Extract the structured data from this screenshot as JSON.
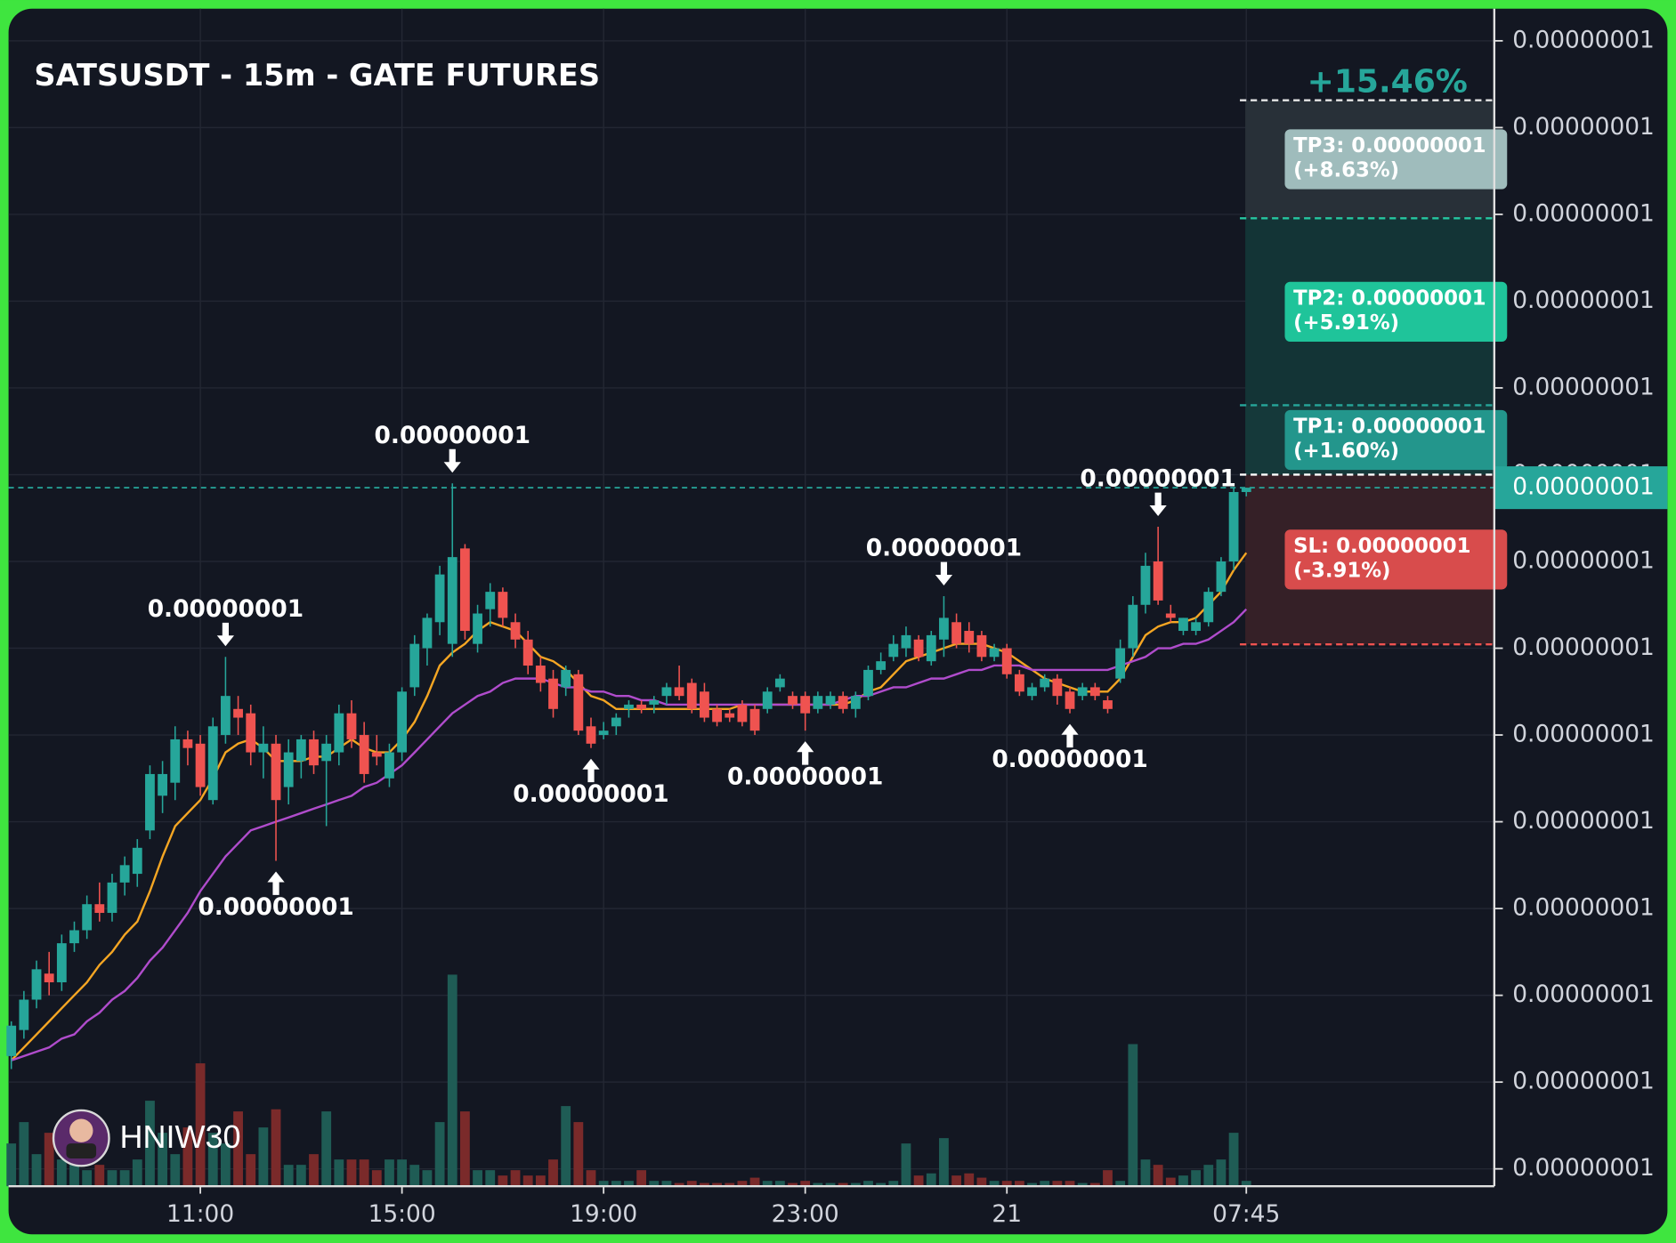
{
  "chart_data": {
    "type": "candlestick",
    "title": "SATSUSDT - 15m - GATE FUTURES",
    "watermark": "HNIW30",
    "categories": [
      null,
      null,
      null,
      null,
      null,
      null,
      null,
      null,
      null,
      null,
      null,
      null,
      null,
      null,
      null,
      "11:00",
      null,
      null,
      null,
      null,
      null,
      null,
      null,
      null,
      null,
      null,
      null,
      null,
      null,
      null,
      null,
      "15:00",
      null,
      null,
      null,
      null,
      null,
      null,
      null,
      null,
      null,
      null,
      null,
      null,
      null,
      null,
      null,
      "19:00",
      null,
      null,
      null,
      null,
      null,
      null,
      null,
      null,
      null,
      null,
      null,
      null,
      null,
      null,
      null,
      "23:00",
      null,
      null,
      null,
      null,
      null,
      null,
      null,
      null,
      null,
      null,
      null,
      null,
      null,
      null,
      null,
      "21",
      null,
      null,
      null,
      null,
      null,
      null,
      null,
      null,
      null,
      null,
      null,
      null,
      null,
      null,
      null,
      null,
      null,
      null,
      "07:45"
    ],
    "open": [
      8.66e-09,
      8.72e-09,
      8.79e-09,
      8.85e-09,
      8.83e-09,
      8.92e-09,
      8.95e-09,
      9.01e-09,
      8.99e-09,
      9.06e-09,
      9.08e-09,
      9.18e-09,
      9.26e-09,
      9.29e-09,
      9.39e-09,
      9.38e-09,
      9.25e-09,
      9.4e-09,
      9.46e-09,
      9.45e-09,
      9.36e-09,
      9.38e-09,
      9.28e-09,
      9.34e-09,
      9.39e-09,
      9.34e-09,
      9.36e-09,
      9.45e-09,
      9.4e-09,
      9.36e-09,
      9.3e-09,
      9.36e-09,
      9.51e-09,
      9.6e-09,
      9.66e-09,
      9.61e-09,
      9.83e-09,
      9.61e-09,
      9.69e-09,
      9.73e-09,
      9.66e-09,
      9.62e-09,
      9.56e-09,
      9.53e-09,
      9.51e-09,
      9.54e-09,
      9.42e-09,
      9.4e-09,
      9.42e-09,
      9.46e-09,
      9.47e-09,
      9.47e-09,
      9.49e-09,
      9.51e-09,
      9.52e-09,
      9.5e-09,
      9.46e-09,
      9.45e-09,
      9.47e-09,
      9.46e-09,
      9.46e-09,
      9.51e-09,
      9.49e-09,
      9.49e-09,
      9.46e-09,
      9.47e-09,
      9.49e-09,
      9.46e-09,
      9.49e-09,
      9.55e-09,
      9.58e-09,
      9.6e-09,
      9.62e-09,
      9.57e-09,
      9.62e-09,
      9.66e-09,
      9.64e-09,
      9.63e-09,
      9.58e-09,
      9.6e-09,
      9.54e-09,
      9.49e-09,
      9.51e-09,
      9.53e-09,
      9.5e-09,
      9.49e-09,
      9.51e-09,
      9.48e-09,
      9.53e-09,
      9.6e-09,
      9.7e-09,
      9.8e-09,
      9.68e-09,
      9.64e-09,
      9.64e-09,
      9.66e-09,
      9.73e-09,
      9.8e-09,
      9.96e-09
    ],
    "high": [
      8.74e-09,
      8.81e-09,
      8.88e-09,
      8.9e-09,
      8.94e-09,
      8.97e-09,
      9.03e-09,
      9.06e-09,
      9.08e-09,
      9.12e-09,
      9.16e-09,
      9.33e-09,
      9.34e-09,
      9.42e-09,
      9.41e-09,
      9.4e-09,
      9.44e-09,
      9.58e-09,
      9.49e-09,
      9.47e-09,
      9.42e-09,
      9.4e-09,
      9.39e-09,
      9.4e-09,
      9.41e-09,
      9.4e-09,
      9.47e-09,
      9.48e-09,
      9.43e-09,
      9.4e-09,
      9.38e-09,
      9.51e-09,
      9.63e-09,
      9.68e-09,
      9.79e-09,
      9.98e-09,
      9.84e-09,
      9.7e-09,
      9.75e-09,
      9.74e-09,
      9.68e-09,
      9.64e-09,
      9.58e-09,
      9.55e-09,
      9.56e-09,
      9.55e-09,
      9.44e-09,
      9.43e-09,
      9.45e-09,
      9.48e-09,
      9.48e-09,
      9.49e-09,
      9.52e-09,
      9.56e-09,
      9.53e-09,
      9.52e-09,
      9.47e-09,
      9.46e-09,
      9.48e-09,
      9.47e-09,
      9.51e-09,
      9.54e-09,
      9.5e-09,
      9.5e-09,
      9.5e-09,
      9.5e-09,
      9.5e-09,
      9.5e-09,
      9.56e-09,
      9.59e-09,
      9.63e-09,
      9.65e-09,
      9.63e-09,
      9.64e-09,
      9.72e-09,
      9.68e-09,
      9.66e-09,
      9.64e-09,
      9.61e-09,
      9.61e-09,
      9.55e-09,
      9.52e-09,
      9.54e-09,
      9.54e-09,
      9.51e-09,
      9.52e-09,
      9.52e-09,
      9.49e-09,
      9.62e-09,
      9.72e-09,
      9.82e-09,
      9.88e-09,
      9.7e-09,
      9.67e-09,
      9.67e-09,
      9.74e-09,
      9.81e-09,
      9.97e-09,
      9.97e-09
    ],
    "low": [
      8.63e-09,
      8.7e-09,
      8.77e-09,
      8.8e-09,
      8.81e-09,
      8.9e-09,
      8.93e-09,
      8.97e-09,
      8.97e-09,
      9.03e-09,
      9.05e-09,
      9.16e-09,
      9.22e-09,
      9.25e-09,
      9.33e-09,
      9.26e-09,
      9.24e-09,
      9.38e-09,
      9.4e-09,
      9.33e-09,
      9.3e-09,
      9.11e-09,
      9.24e-09,
      9.3e-09,
      9.31e-09,
      9.19e-09,
      9.33e-09,
      9.37e-09,
      9.29e-09,
      9.33e-09,
      9.28e-09,
      9.34e-09,
      9.49e-09,
      9.56e-09,
      9.63e-09,
      9.58e-09,
      9.62e-09,
      9.59e-09,
      9.65e-09,
      9.65e-09,
      9.6e-09,
      9.54e-09,
      9.5e-09,
      9.44e-09,
      9.49e-09,
      9.4e-09,
      9.37e-09,
      9.39e-09,
      9.4e-09,
      9.44e-09,
      9.45e-09,
      9.45e-09,
      9.47e-09,
      9.48e-09,
      9.45e-09,
      9.43e-09,
      9.42e-09,
      9.43e-09,
      9.42e-09,
      9.4e-09,
      9.45e-09,
      9.5e-09,
      9.46e-09,
      9.41e-09,
      9.45e-09,
      9.46e-09,
      9.45e-09,
      9.44e-09,
      9.48e-09,
      9.54e-09,
      9.57e-09,
      9.58e-09,
      9.57e-09,
      9.56e-09,
      9.58e-09,
      9.6e-09,
      9.59e-09,
      9.57e-09,
      9.57e-09,
      9.53e-09,
      9.49e-09,
      9.48e-09,
      9.5e-09,
      9.47e-09,
      9.45e-09,
      9.48e-09,
      9.48e-09,
      9.45e-09,
      9.52e-09,
      9.58e-09,
      9.68e-09,
      9.7e-09,
      9.66e-09,
      9.63e-09,
      9.63e-09,
      9.65e-09,
      9.72e-09,
      9.78e-09,
      9.95e-09
    ],
    "close": [
      8.73e-09,
      8.79e-09,
      8.86e-09,
      8.83e-09,
      8.92e-09,
      8.95e-09,
      9.01e-09,
      8.99e-09,
      9.06e-09,
      9.1e-09,
      9.14e-09,
      9.31e-09,
      9.31e-09,
      9.39e-09,
      9.37e-09,
      9.28e-09,
      9.42e-09,
      9.49e-09,
      9.44e-09,
      9.36e-09,
      9.38e-09,
      9.25e-09,
      9.36e-09,
      9.39e-09,
      9.33e-09,
      9.38e-09,
      9.45e-09,
      9.39e-09,
      9.31e-09,
      9.35e-09,
      9.36e-09,
      9.5e-09,
      9.61e-09,
      9.67e-09,
      9.77e-09,
      9.81e-09,
      9.64e-09,
      9.68e-09,
      9.73e-09,
      9.67e-09,
      9.62e-09,
      9.56e-09,
      9.52e-09,
      9.46e-09,
      9.55e-09,
      9.41e-09,
      9.38e-09,
      9.41e-09,
      9.44e-09,
      9.47e-09,
      9.46e-09,
      9.48e-09,
      9.51e-09,
      9.49e-09,
      9.46e-09,
      9.44e-09,
      9.43e-09,
      9.44e-09,
      9.43e-09,
      9.41e-09,
      9.5e-09,
      9.53e-09,
      9.47e-09,
      9.45e-09,
      9.49e-09,
      9.49e-09,
      9.46e-09,
      9.49e-09,
      9.55e-09,
      9.57e-09,
      9.61e-09,
      9.63e-09,
      9.58e-09,
      9.63e-09,
      9.67e-09,
      9.61e-09,
      9.61e-09,
      9.58e-09,
      9.6e-09,
      9.54e-09,
      9.5e-09,
      9.51e-09,
      9.53e-09,
      9.49e-09,
      9.46e-09,
      9.51e-09,
      9.49e-09,
      9.46e-09,
      9.6e-09,
      9.7e-09,
      9.79e-09,
      9.71e-09,
      9.67e-09,
      9.67e-09,
      9.66e-09,
      9.73e-09,
      9.8e-09,
      9.96e-09,
      9.97e-09
    ],
    "volume": [
      40,
      60,
      30,
      50,
      25,
      30,
      15,
      20,
      15,
      15,
      25,
      80,
      50,
      30,
      55,
      115,
      50,
      40,
      70,
      30,
      55,
      72,
      20,
      20,
      30,
      70,
      25,
      25,
      25,
      15,
      25,
      25,
      20,
      15,
      60,
      198,
      70,
      15,
      15,
      10,
      15,
      10,
      10,
      25,
      75,
      60,
      15,
      5,
      5,
      5,
      15,
      5,
      5,
      3,
      5,
      3,
      3,
      3,
      5,
      8,
      5,
      5,
      3,
      5,
      3,
      3,
      3,
      3,
      5,
      3,
      5,
      40,
      10,
      12,
      45,
      10,
      12,
      8,
      5,
      5,
      5,
      3,
      5,
      5,
      5,
      3,
      3,
      15,
      5,
      133,
      25,
      20,
      8,
      10,
      15,
      20,
      25,
      50,
      5
    ],
    "high_labels": [
      null,
      null,
      null,
      null,
      null,
      null,
      null,
      null,
      null,
      null,
      null,
      null,
      null,
      null,
      null,
      null,
      null,
      "0.00000001",
      null,
      null,
      null,
      null,
      null,
      null,
      null,
      null,
      null,
      null,
      null,
      null,
      null,
      null,
      null,
      null,
      null,
      "0.00000001",
      null,
      null,
      null,
      null,
      null,
      null,
      null,
      null,
      null,
      null,
      null,
      null,
      null,
      null,
      null,
      null,
      null,
      null,
      null,
      null,
      null,
      null,
      null,
      null,
      null,
      null,
      null,
      null,
      null,
      null,
      null,
      null,
      null,
      null,
      null,
      null,
      null,
      null,
      "0.00000001",
      null,
      null,
      null,
      null,
      null,
      null,
      null,
      null,
      null,
      null,
      null,
      null,
      null,
      null,
      null,
      null,
      "0.00000001",
      null,
      null,
      null,
      null,
      null,
      null,
      null
    ],
    "low_labels": [
      null,
      null,
      null,
      null,
      null,
      null,
      null,
      null,
      null,
      null,
      null,
      null,
      null,
      null,
      null,
      null,
      null,
      null,
      null,
      null,
      null,
      "0.00000001",
      null,
      null,
      null,
      null,
      null,
      null,
      null,
      null,
      null,
      null,
      null,
      null,
      null,
      null,
      null,
      null,
      null,
      null,
      null,
      null,
      null,
      null,
      null,
      null,
      "0.00000001",
      null,
      null,
      null,
      null,
      null,
      null,
      null,
      null,
      null,
      null,
      null,
      null,
      null,
      null,
      null,
      null,
      "0.00000001",
      null,
      null,
      null,
      null,
      null,
      null,
      null,
      null,
      null,
      null,
      null,
      null,
      null,
      null,
      null,
      null,
      null,
      null,
      null,
      null,
      "0.00000001",
      null,
      null,
      null,
      null,
      null,
      null,
      null,
      null,
      null,
      null,
      null,
      null,
      null,
      null
    ],
    "up_color": "#26a69a",
    "down_color": "#ef5350",
    "volume_up_color": "#1f5c55",
    "volume_down_color": "#7a2a2a",
    "lines": [
      {
        "color": "#f5a623",
        "values": [
          8.65e-09,
          8.68e-09,
          8.71e-09,
          8.74e-09,
          8.77e-09,
          8.8e-09,
          8.83e-09,
          8.87e-09,
          8.9e-09,
          8.94e-09,
          8.97e-09,
          9.04e-09,
          9.12e-09,
          9.19e-09,
          9.22e-09,
          9.25e-09,
          9.3e-09,
          9.36e-09,
          9.38e-09,
          9.39e-09,
          9.37e-09,
          9.34e-09,
          9.34e-09,
          9.34e-09,
          9.35e-09,
          9.35e-09,
          9.37e-09,
          9.39e-09,
          9.37e-09,
          9.36e-09,
          9.36e-09,
          9.39e-09,
          9.43e-09,
          9.49e-09,
          9.56e-09,
          9.59e-09,
          9.61e-09,
          9.64e-09,
          9.66e-09,
          9.65e-09,
          9.64e-09,
          9.61e-09,
          9.58e-09,
          9.57e-09,
          9.55e-09,
          9.52e-09,
          9.49e-09,
          9.48e-09,
          9.46e-09,
          9.46e-09,
          9.46e-09,
          9.46e-09,
          9.46e-09,
          9.46e-09,
          9.46e-09,
          9.46e-09,
          9.46e-09,
          9.46e-09,
          9.47e-09,
          9.47e-09,
          9.47e-09,
          9.47e-09,
          9.47e-09,
          9.47e-09,
          9.47e-09,
          9.47e-09,
          9.47e-09,
          9.48e-09,
          9.5e-09,
          9.51e-09,
          9.54e-09,
          9.57e-09,
          9.58e-09,
          9.59e-09,
          9.6e-09,
          9.61e-09,
          9.61e-09,
          9.61e-09,
          9.6e-09,
          9.59e-09,
          9.57e-09,
          9.55e-09,
          9.53e-09,
          9.52e-09,
          9.51e-09,
          9.5e-09,
          9.5e-09,
          9.5e-09,
          9.53e-09,
          9.58e-09,
          9.63e-09,
          9.65e-09,
          9.66e-09,
          9.66e-09,
          9.67e-09,
          9.7e-09,
          9.73e-09,
          9.78e-09,
          9.82e-09
        ]
      },
      {
        "color": "#b04ccc",
        "values": [
          8.65e-09,
          8.66e-09,
          8.67e-09,
          8.68e-09,
          8.7e-09,
          8.71e-09,
          8.74e-09,
          8.76e-09,
          8.79e-09,
          8.81e-09,
          8.84e-09,
          8.88e-09,
          8.91e-09,
          8.95e-09,
          8.99e-09,
          9.04e-09,
          9.08e-09,
          9.12e-09,
          9.15e-09,
          9.18e-09,
          9.19e-09,
          9.2e-09,
          9.21e-09,
          9.22e-09,
          9.23e-09,
          9.24e-09,
          9.25e-09,
          9.26e-09,
          9.28e-09,
          9.29e-09,
          9.31e-09,
          9.33e-09,
          9.36e-09,
          9.39e-09,
          9.42e-09,
          9.45e-09,
          9.47e-09,
          9.49e-09,
          9.5e-09,
          9.52e-09,
          9.53e-09,
          9.53e-09,
          9.53e-09,
          9.52e-09,
          9.51e-09,
          9.51e-09,
          9.5e-09,
          9.5e-09,
          9.49e-09,
          9.49e-09,
          9.48e-09,
          9.48e-09,
          9.47e-09,
          9.47e-09,
          9.47e-09,
          9.47e-09,
          9.47e-09,
          9.47e-09,
          9.47e-09,
          9.47e-09,
          9.47e-09,
          9.47e-09,
          9.47e-09,
          9.47e-09,
          9.47e-09,
          9.47e-09,
          9.48e-09,
          9.49e-09,
          9.49e-09,
          9.5e-09,
          9.51e-09,
          9.51e-09,
          9.52e-09,
          9.53e-09,
          9.53e-09,
          9.54e-09,
          9.55e-09,
          9.55e-09,
          9.56e-09,
          9.56e-09,
          9.56e-09,
          9.55e-09,
          9.55e-09,
          9.55e-09,
          9.55e-09,
          9.55e-09,
          9.55e-09,
          9.55e-09,
          9.56e-09,
          9.57e-09,
          9.58e-09,
          9.6e-09,
          9.6e-09,
          9.61e-09,
          9.61e-09,
          9.62e-09,
          9.64e-09,
          9.66e-09,
          9.69e-09
        ]
      }
    ],
    "ylim": [
      8.36e-09,
      1.1074e-08
    ],
    "yticks": [
      {
        "value": 1.1e-08,
        "label": "0.00000001"
      },
      {
        "value": 1.08e-08,
        "label": "0.00000001"
      },
      {
        "value": 1.06e-08,
        "label": "0.00000001"
      },
      {
        "value": 1.04e-08,
        "label": "0.00000001"
      },
      {
        "value": 1.02e-08,
        "label": "0.00000001"
      },
      {
        "value": 1e-08,
        "label": "0.00000001"
      },
      {
        "value": 9.8e-09,
        "label": "0.00000001"
      },
      {
        "value": 9.6e-09,
        "label": "0.00000001"
      },
      {
        "value": 9.4e-09,
        "label": "0.00000001"
      },
      {
        "value": 9.2e-09,
        "label": "0.00000001"
      },
      {
        "value": 9e-09,
        "label": "0.00000001"
      },
      {
        "value": 8.8e-09,
        "label": "0.00000001"
      },
      {
        "value": 8.6e-09,
        "label": "0.00000001"
      },
      {
        "value": 8.4e-09,
        "label": "0.00000001"
      }
    ],
    "grid": true,
    "last_price_label": "0.00000001",
    "last_price_color": "#26a69a",
    "entry": {
      "value": 1e-08,
      "color": "#ffffff"
    },
    "target_label": "+15.46%",
    "target_color": "#26a69a",
    "levels": [
      {
        "label": "TP3: 0.00000001",
        "pct_label": "(+8.63%)",
        "value": 1.0863e-08,
        "color": "#9fbcbc",
        "line_color": "#e6e6e6",
        "zone_color": "#283038"
      },
      {
        "label": "TP2: 0.00000001",
        "pct_label": "(+5.91%)",
        "value": 1.0591e-08,
        "color": "#1fc49a",
        "line_color": "#26c6a0",
        "zone_color": "#133436"
      },
      {
        "label": "TP1: 0.00000001",
        "pct_label": "(+1.60%)",
        "value": 1.016e-08,
        "color": "#23968c",
        "line_color": "#26a69a",
        "zone_color": "#15393a"
      },
      {
        "label": "SL: 0.00000001",
        "pct_label": "(-3.91%)",
        "value": 9.609e-09,
        "color": "#d84c4c",
        "line_color": "#ef5350",
        "zone_color": "#352027"
      }
    ]
  }
}
